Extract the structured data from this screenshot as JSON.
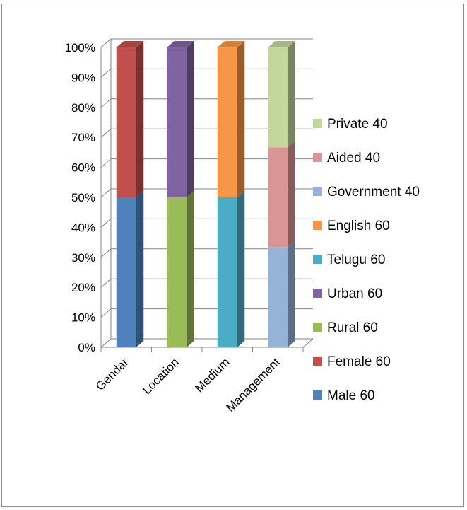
{
  "chart_data": {
    "type": "bar",
    "stacked": true,
    "percent_stacked": true,
    "three_d": true,
    "categories": [
      "Gendar",
      "Location",
      "Medium",
      "Management"
    ],
    "yticks": [
      "0%",
      "10%",
      "20%",
      "30%",
      "40%",
      "50%",
      "60%",
      "70%",
      "80%",
      "90%",
      "100%"
    ],
    "ylim": [
      0,
      100
    ],
    "grid": true,
    "legend_position": "right",
    "series": [
      {
        "name": "Male 60",
        "category": "Gendar",
        "value": 60,
        "color": "#4f81bd"
      },
      {
        "name": "Female 60",
        "category": "Gendar",
        "value": 60,
        "color": "#c0504d"
      },
      {
        "name": "Rural 60",
        "category": "Location",
        "value": 60,
        "color": "#9bbb59"
      },
      {
        "name": "Urban 60",
        "category": "Location",
        "value": 60,
        "color": "#8064a2"
      },
      {
        "name": "Telugu 60",
        "category": "Medium",
        "value": 60,
        "color": "#4bacc6"
      },
      {
        "name": "English 60",
        "category": "Medium",
        "value": 60,
        "color": "#f79646"
      },
      {
        "name": "Government 40",
        "category": "Management",
        "value": 40,
        "color": "#95b3d7"
      },
      {
        "name": "Aided 40",
        "category": "Management",
        "value": 40,
        "color": "#d99694"
      },
      {
        "name": "Private 40",
        "category": "Management",
        "value": 40,
        "color": "#c3d69b"
      }
    ],
    "legend_order": [
      "Private 40",
      "Aided 40",
      "Government 40",
      "English 60",
      "Telugu 60",
      "Urban 60",
      "Rural 60",
      "Female 60",
      "Male 60"
    ]
  }
}
